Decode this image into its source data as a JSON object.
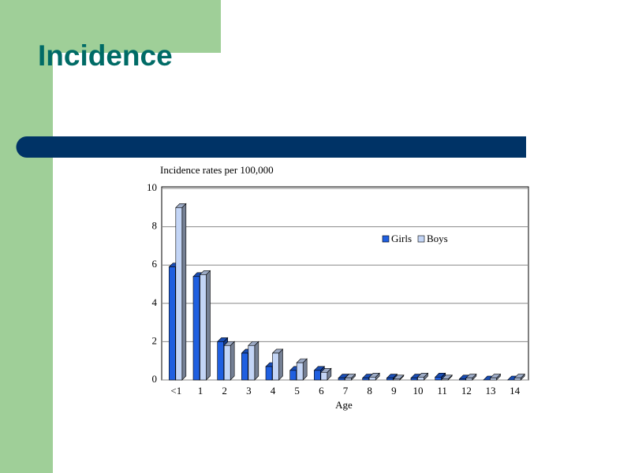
{
  "slide": {
    "title": "Incidence"
  },
  "chart_data": {
    "type": "bar3d",
    "y_label": "Incidence rates per 100,000",
    "x_label": "Age",
    "categories": [
      "<1",
      "1",
      "2",
      "3",
      "4",
      "5",
      "6",
      "7",
      "8",
      "9",
      "10",
      "11",
      "12",
      "13",
      "14"
    ],
    "series": [
      {
        "name": "Girls",
        "color": "#1f5fe0",
        "values": [
          5.9,
          5.4,
          2.0,
          1.4,
          0.7,
          0.5,
          0.5,
          0.1,
          0.1,
          0.1,
          0.1,
          0.15,
          0.05,
          0.0,
          0.0
        ]
      },
      {
        "name": "Boys",
        "color": "#c3d5f6",
        "values": [
          9.0,
          5.5,
          1.8,
          1.8,
          1.4,
          0.9,
          0.4,
          0.1,
          0.15,
          0.05,
          0.15,
          0.05,
          0.1,
          0.1,
          0.1
        ]
      }
    ],
    "ylim": [
      0,
      10
    ],
    "yticks": [
      0,
      2,
      4,
      6,
      8,
      10
    ],
    "grid": true
  }
}
